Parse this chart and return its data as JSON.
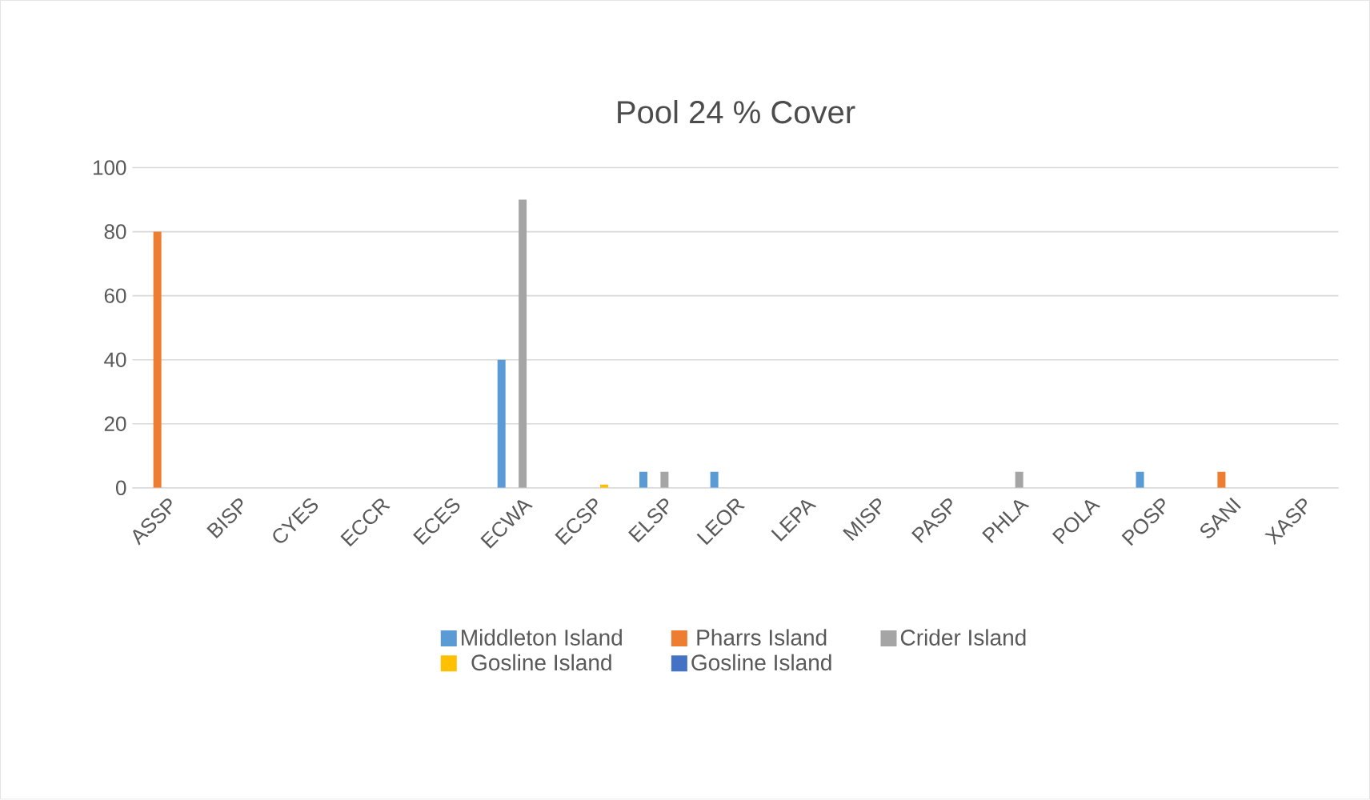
{
  "chart_data": {
    "type": "bar",
    "title": "Pool 24 % Cover",
    "categories": [
      "ASSP",
      "BISP",
      "CYES",
      "ECCR",
      "ECES",
      "ECWA",
      "ECSP",
      "ELSP",
      "LEOR",
      "LEPA",
      "MISP",
      "PASP",
      "PHLA",
      "POLA",
      "POSP",
      "SANI",
      "XASP"
    ],
    "series": [
      {
        "name": "Middleton Island",
        "color": "#5b9bd5",
        "values": [
          null,
          null,
          null,
          null,
          null,
          40,
          null,
          5,
          5,
          null,
          null,
          null,
          null,
          null,
          5,
          null,
          null
        ]
      },
      {
        "name": "Pharrs Island",
        "color": "#ed7d31",
        "values": [
          80,
          null,
          null,
          null,
          null,
          null,
          null,
          null,
          null,
          null,
          null,
          null,
          null,
          null,
          null,
          5,
          null
        ]
      },
      {
        "name": "Crider Island",
        "color": "#a5a5a5",
        "values": [
          null,
          null,
          null,
          null,
          null,
          90,
          null,
          5,
          null,
          null,
          null,
          null,
          5,
          null,
          null,
          null,
          null
        ]
      },
      {
        "name": "Gosline Island",
        "color": "#ffc000",
        "values": [
          null,
          null,
          null,
          null,
          null,
          null,
          1,
          null,
          null,
          null,
          null,
          null,
          null,
          null,
          null,
          null,
          null
        ]
      },
      {
        "name": "Gosline Island",
        "color": "#4472c4",
        "values": [
          null,
          null,
          null,
          null,
          null,
          null,
          null,
          null,
          null,
          null,
          null,
          null,
          null,
          null,
          null,
          null,
          null
        ]
      }
    ],
    "ylim": [
      0,
      100
    ],
    "yticks": [
      0,
      20,
      40,
      60,
      80,
      100
    ],
    "grid": "y",
    "legend": "bottom"
  }
}
